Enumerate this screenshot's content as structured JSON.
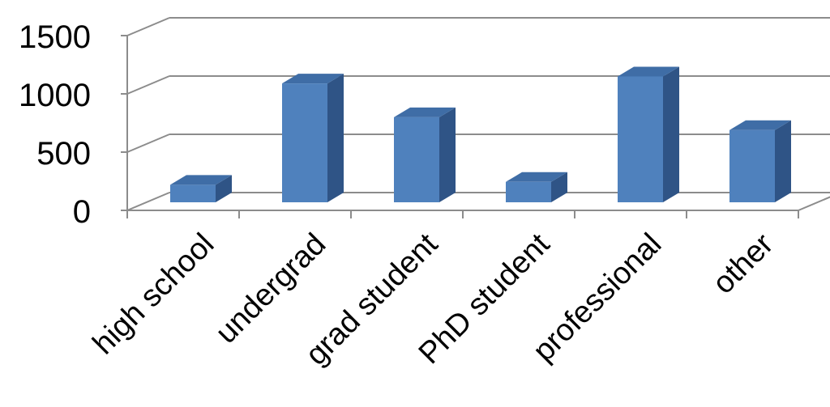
{
  "chart_data": {
    "type": "bar",
    "style": "3d-column",
    "categories": [
      "high school",
      "undergrad",
      "grad student",
      "PhD student",
      "professional",
      "other"
    ],
    "values": [
      150,
      1020,
      730,
      175,
      1080,
      620
    ],
    "ylim": [
      0,
      1500
    ],
    "yticks": [
      "0",
      "500",
      "1000",
      "1500"
    ],
    "title": "",
    "xlabel": "",
    "ylabel": "",
    "grid": true,
    "legend": "none",
    "colors": {
      "front": "#4F81BD",
      "side": "#2F5486",
      "top": "#3F6DA6",
      "grid": "#8C8C8C"
    }
  }
}
